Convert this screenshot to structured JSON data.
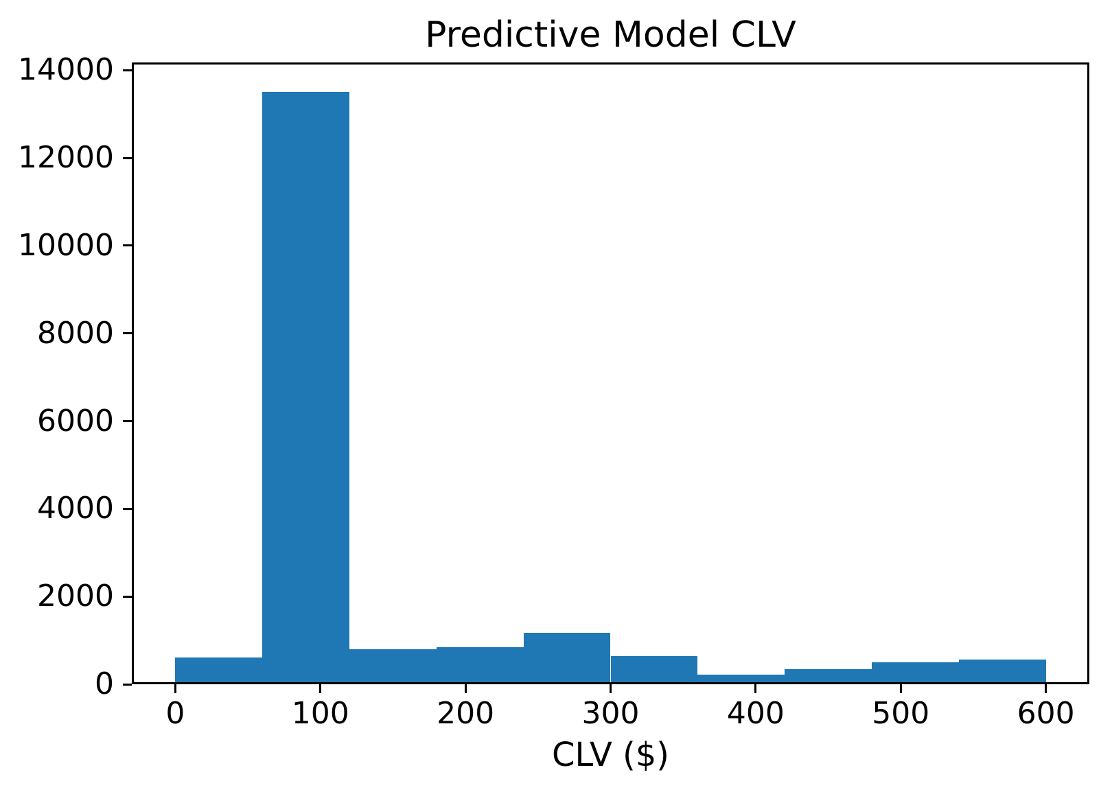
{
  "chart_data": {
    "type": "bar",
    "subtype": "histogram",
    "title": "Predictive Model CLV",
    "xlabel": "CLV ($)",
    "ylabel": "",
    "bar_color": "#1f77b4",
    "background_color": "#ffffff",
    "spine_color": "#000000",
    "text_color": "#000000",
    "bin_edges": [
      0,
      60,
      120,
      180,
      240,
      300,
      360,
      420,
      480,
      540,
      600
    ],
    "values": [
      615,
      13500,
      800,
      840,
      1170,
      640,
      215,
      345,
      500,
      565
    ],
    "x_ticks": [
      0,
      100,
      200,
      300,
      400,
      500,
      600
    ],
    "y_ticks": [
      0,
      2000,
      4000,
      6000,
      8000,
      10000,
      12000,
      14000
    ],
    "xlim": [
      -30,
      630
    ],
    "ylim": [
      0,
      14175
    ],
    "grid": false,
    "legend": null
  }
}
